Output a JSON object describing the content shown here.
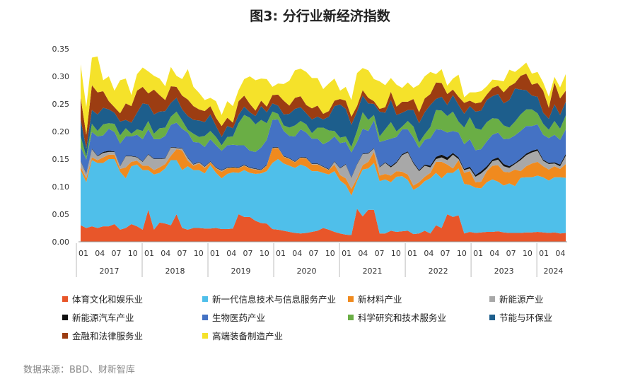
{
  "chart_data": {
    "type": "area",
    "stacked": true,
    "title": "图3: 分行业新经济指数",
    "source": "数据来源：BBD、财新智库",
    "ylim": [
      0,
      0.35
    ],
    "yticks": [
      "0.00",
      "0.05",
      "0.10",
      "0.15",
      "0.20",
      "0.25",
      "0.30",
      "0.35"
    ],
    "ytick_values": [
      0,
      0.05,
      0.1,
      0.15,
      0.2,
      0.25,
      0.3,
      0.35
    ],
    "month_ticks": [
      "01",
      "04",
      "07",
      "10",
      "01",
      "04",
      "07",
      "10",
      "01",
      "04",
      "07",
      "10",
      "01",
      "04",
      "07",
      "10",
      "01",
      "04",
      "07",
      "10",
      "01",
      "04",
      "07",
      "10",
      "01",
      "04",
      "07",
      "10",
      "01",
      "04"
    ],
    "years": [
      "2017",
      "2018",
      "2019",
      "2020",
      "2021",
      "2022",
      "2023",
      "2024"
    ],
    "series": [
      {
        "name": "体育文化和娱乐业",
        "color": "#E8562A",
        "values": [
          0.03,
          0.025,
          0.028,
          0.025,
          0.028,
          0.028,
          0.032,
          0.022,
          0.025,
          0.032,
          0.028,
          0.022,
          0.058,
          0.022,
          0.035,
          0.033,
          0.03,
          0.05,
          0.025,
          0.022,
          0.025,
          0.025,
          0.024,
          0.024,
          0.025,
          0.023,
          0.023,
          0.024,
          0.05,
          0.045,
          0.045,
          0.038,
          0.034,
          0.033,
          0.023,
          0.022,
          0.02,
          0.018,
          0.016,
          0.015,
          0.016,
          0.018,
          0.02,
          0.025,
          0.022,
          0.018,
          0.015,
          0.013,
          0.012,
          0.06,
          0.046,
          0.058,
          0.058,
          0.015,
          0.015,
          0.02,
          0.018,
          0.019,
          0.02,
          0.014,
          0.015,
          0.02,
          0.015,
          0.03,
          0.025,
          0.05,
          0.045,
          0.048,
          0.015,
          0.018,
          0.016,
          0.017,
          0.018,
          0.018,
          0.019,
          0.017,
          0.016,
          0.016,
          0.016,
          0.017,
          0.017,
          0.018,
          0.017,
          0.016,
          0.017,
          0.015,
          0.016
        ]
      },
      {
        "name": "新一代信息技术与信息服务产业",
        "color": "#4FBFEA",
        "values": [
          0.1,
          0.083,
          0.12,
          0.118,
          0.115,
          0.122,
          0.118,
          0.105,
          0.09,
          0.105,
          0.112,
          0.108,
          0.072,
          0.1,
          0.09,
          0.1,
          0.118,
          0.098,
          0.105,
          0.115,
          0.105,
          0.105,
          0.1,
          0.115,
          0.1,
          0.092,
          0.1,
          0.102,
          0.075,
          0.085,
          0.08,
          0.085,
          0.09,
          0.095,
          0.12,
          0.128,
          0.122,
          0.12,
          0.118,
          0.125,
          0.12,
          0.11,
          0.108,
          0.1,
          0.1,
          0.11,
          0.096,
          0.09,
          0.072,
          0.05,
          0.085,
          0.075,
          0.085,
          0.095,
          0.098,
          0.088,
          0.1,
          0.1,
          0.092,
          0.08,
          0.085,
          0.09,
          0.1,
          0.095,
          0.09,
          0.075,
          0.08,
          0.085,
          0.09,
          0.085,
          0.082,
          0.08,
          0.09,
          0.095,
          0.09,
          0.085,
          0.09,
          0.085,
          0.1,
          0.1,
          0.1,
          0.102,
          0.1,
          0.095,
          0.1,
          0.102,
          0.1
        ]
      },
      {
        "name": "新材料产业",
        "color": "#F08A1E",
        "values": [
          0.006,
          0.007,
          0.005,
          0.005,
          0.01,
          0.008,
          0.008,
          0.005,
          0.02,
          0.008,
          0.007,
          0.008,
          0.008,
          0.008,
          0.01,
          0.008,
          0.008,
          0.02,
          0.036,
          0.01,
          0.008,
          0.012,
          0.01,
          0.005,
          0.008,
          0.012,
          0.01,
          0.008,
          0.008,
          0.008,
          0.008,
          0.008,
          0.005,
          0.01,
          0.026,
          0.02,
          0.012,
          0.012,
          0.01,
          0.012,
          0.015,
          0.012,
          0.012,
          0.01,
          0.008,
          0.012,
          0.01,
          0.012,
          0.012,
          0.005,
          0.008,
          0.012,
          0.02,
          0.01,
          0.01,
          0.012,
          0.01,
          0.008,
          0.01,
          0.008,
          0.008,
          0.008,
          0.01,
          0.02,
          0.03,
          0.015,
          0.008,
          0.015,
          0.02,
          0.025,
          0.01,
          0.012,
          0.02,
          0.025,
          0.03,
          0.025,
          0.02,
          0.03,
          0.012,
          0.02,
          0.025,
          0.025,
          0.02,
          0.02,
          0.02,
          0.015,
          0.025
        ]
      },
      {
        "name": "新能源产业",
        "color": "#A8A8A8",
        "values": [
          0.01,
          0.008,
          0.015,
          0.007,
          0.008,
          0.005,
          0.005,
          0.005,
          0.02,
          0.01,
          0.006,
          0.007,
          0.02,
          0.02,
          0.015,
          0.01,
          0.015,
          0.002,
          0.003,
          0.005,
          0.002,
          0.002,
          0.002,
          0.001,
          0.001,
          0.002,
          0.001,
          0.001,
          0.001,
          0.001,
          0.001,
          0.001,
          0.001,
          0.001,
          0.001,
          0.001,
          0.001,
          0.001,
          0.001,
          0.001,
          0.001,
          0.001,
          0.001,
          0.001,
          0.001,
          0.005,
          0.012,
          0.025,
          0.02,
          0.025,
          0.02,
          0.015,
          0.006,
          0.015,
          0.02,
          0.015,
          0.015,
          0.03,
          0.04,
          0.04,
          0.02,
          0.02,
          0.01,
          0.005,
          0.008,
          0.008,
          0.025,
          0.002,
          0.005,
          0.005,
          0.01,
          0.015,
          0.005,
          0.008,
          0.01,
          0.01,
          0.008,
          0.01,
          0.02,
          0.02,
          0.02,
          0.02,
          0.01,
          0.01,
          0.005,
          0.005,
          0.015
        ]
      },
      {
        "name": "新能源汽车产业",
        "color": "#111111",
        "values": [
          0.001,
          0.001,
          0.001,
          0.001,
          0.002,
          0.002,
          0.001,
          0.001,
          0.001,
          0.001,
          0.001,
          0.001,
          0.001,
          0.001,
          0.001,
          0.001,
          0.001,
          0.001,
          0.001,
          0.001,
          0.001,
          0.001,
          0.001,
          0.001,
          0.001,
          0.001,
          0.001,
          0.001,
          0.001,
          0.001,
          0.001,
          0.001,
          0.001,
          0.001,
          0.001,
          0.001,
          0.001,
          0.001,
          0.001,
          0.001,
          0.001,
          0.001,
          0.001,
          0.001,
          0.001,
          0.001,
          0.001,
          0.001,
          0.001,
          0.001,
          0.001,
          0.001,
          0.001,
          0.001,
          0.001,
          0.002,
          0.002,
          0.002,
          0.002,
          0.002,
          0.002,
          0.002,
          0.003,
          0.004,
          0.005,
          0.005,
          0.003,
          0.003,
          0.002,
          0.003,
          0.003,
          0.004,
          0.004,
          0.003,
          0.004,
          0.004,
          0.003,
          0.002,
          0.003,
          0.003,
          0.003,
          0.003,
          0.002,
          0.002,
          0.002,
          0.003,
          0.003
        ]
      },
      {
        "name": "生物医药产业",
        "color": "#4472C4",
        "values": [
          0.025,
          0.025,
          0.03,
          0.035,
          0.03,
          0.04,
          0.035,
          0.04,
          0.035,
          0.035,
          0.04,
          0.04,
          0.045,
          0.035,
          0.035,
          0.04,
          0.04,
          0.045,
          0.035,
          0.045,
          0.04,
          0.035,
          0.035,
          0.04,
          0.04,
          0.035,
          0.04,
          0.04,
          0.04,
          0.035,
          0.03,
          0.03,
          0.04,
          0.045,
          0.05,
          0.05,
          0.045,
          0.04,
          0.045,
          0.05,
          0.045,
          0.045,
          0.045,
          0.04,
          0.05,
          0.045,
          0.045,
          0.04,
          0.045,
          0.04,
          0.045,
          0.04,
          0.05,
          0.045,
          0.04,
          0.05,
          0.045,
          0.045,
          0.04,
          0.045,
          0.04,
          0.045,
          0.05,
          0.05,
          0.045,
          0.045,
          0.04,
          0.045,
          0.045,
          0.05,
          0.045,
          0.04,
          0.045,
          0.045,
          0.045,
          0.045,
          0.05,
          0.05,
          0.05,
          0.05,
          0.045,
          0.045,
          0.045,
          0.045,
          0.05,
          0.045,
          0.045
        ]
      },
      {
        "name": "科学研究和技术服务业",
        "color": "#6AAE45",
        "values": [
          0.02,
          0.005,
          0.015,
          0.01,
          0.02,
          0.01,
          0.015,
          0.015,
          0.015,
          0.005,
          0.01,
          0.015,
          0.015,
          0.01,
          0.02,
          0.015,
          0.015,
          0.02,
          0.015,
          0.005,
          0.015,
          0.01,
          0.02,
          0.015,
          0.015,
          0.01,
          0.015,
          0.015,
          0.04,
          0.055,
          0.06,
          0.05,
          0.05,
          0.03,
          0.015,
          0.01,
          0.01,
          0.015,
          0.02,
          0.015,
          0.015,
          0.01,
          0.02,
          0.03,
          0.02,
          0.01,
          0.01,
          0.01,
          0.01,
          0.02,
          0.03,
          0.02,
          0.01,
          0.01,
          0.02,
          0.03,
          0.01,
          0.005,
          0.015,
          0.02,
          0.01,
          0.01,
          0.02,
          0.035,
          0.035,
          0.03,
          0.035,
          0.02,
          0.03,
          0.04,
          0.04,
          0.035,
          0.035,
          0.03,
          0.025,
          0.025,
          0.02,
          0.025,
          0.03,
          0.03,
          0.03,
          0.02,
          0.02,
          0.015,
          0.025,
          0.02,
          0.025
        ]
      },
      {
        "name": "节能与环保业",
        "color": "#1D5E8C",
        "values": [
          0.03,
          0.015,
          0.025,
          0.03,
          0.03,
          0.025,
          0.02,
          0.025,
          0.015,
          0.02,
          0.03,
          0.05,
          0.03,
          0.035,
          0.03,
          0.03,
          0.025,
          0.025,
          0.02,
          0.025,
          0.025,
          0.03,
          0.025,
          0.03,
          0.02,
          0.015,
          0.02,
          0.015,
          0.015,
          0.015,
          0.01,
          0.015,
          0.025,
          0.02,
          0.015,
          0.015,
          0.02,
          0.025,
          0.03,
          0.025,
          0.02,
          0.025,
          0.02,
          0.015,
          0.025,
          0.045,
          0.06,
          0.05,
          0.04,
          0.035,
          0.03,
          0.03,
          0.02,
          0.045,
          0.03,
          0.04,
          0.03,
          0.025,
          0.02,
          0.03,
          0.035,
          0.04,
          0.04,
          0.02,
          0.025,
          0.02,
          0.03,
          0.03,
          0.025,
          0.02,
          0.03,
          0.035,
          0.04,
          0.04,
          0.045,
          0.04,
          0.05,
          0.06,
          0.045,
          0.035,
          0.025,
          0.03,
          0.02,
          0.02,
          0.03,
          0.025,
          0.025
        ]
      },
      {
        "name": "金融和法律服务业",
        "color": "#9C3D12",
        "values": [
          0.04,
          0.025,
          0.045,
          0.04,
          0.03,
          0.015,
          0.01,
          0.015,
          0.03,
          0.03,
          0.04,
          0.03,
          0.02,
          0.045,
          0.03,
          0.02,
          0.03,
          0.02,
          0.025,
          0.03,
          0.025,
          0.02,
          0.02,
          0.015,
          0.015,
          0.02,
          0.015,
          0.01,
          0.025,
          0.02,
          0.015,
          0.01,
          0.01,
          0.01,
          0.015,
          0.02,
          0.025,
          0.015,
          0.02,
          0.02,
          0.015,
          0.02,
          0.02,
          0.01,
          0.01,
          0.01,
          0.01,
          0.015,
          0.015,
          0.01,
          0.01,
          0.01,
          0.005,
          0.005,
          0.01,
          0.015,
          0.015,
          0.02,
          0.015,
          0.02,
          0.02,
          0.025,
          0.02,
          0.03,
          0.025,
          0.02,
          0.01,
          0.015,
          0.02,
          0.01,
          0.015,
          0.015,
          0.01,
          0.015,
          0.015,
          0.02,
          0.025,
          0.01,
          0.025,
          0.03,
          0.02,
          0.025,
          0.04,
          0.02,
          0.04,
          0.03,
          0.02
        ]
      },
      {
        "name": "高端装备制造产业",
        "color": "#F5E22A",
        "values": [
          0.06,
          0.05,
          0.05,
          0.065,
          0.02,
          0.045,
          0.03,
          0.06,
          0.045,
          0.02,
          0.03,
          0.035,
          0.04,
          0.025,
          0.03,
          0.025,
          0.035,
          0.02,
          0.03,
          0.055,
          0.035,
          0.03,
          0.02,
          0.015,
          0.03,
          0.02,
          0.03,
          0.03,
          0.02,
          0.03,
          0.05,
          0.055,
          0.04,
          0.05,
          0.015,
          0.02,
          0.03,
          0.045,
          0.05,
          0.05,
          0.06,
          0.055,
          0.05,
          0.045,
          0.05,
          0.04,
          0.015,
          0.025,
          0.03,
          0.06,
          0.04,
          0.05,
          0.04,
          0.05,
          0.04,
          0.025,
          0.04,
          0.025,
          0.035,
          0.02,
          0.05,
          0.04,
          0.04,
          0.015,
          0.025,
          0.015,
          0.02,
          0.04,
          0.01,
          0.015,
          0.02,
          0.02,
          0.015,
          0.015,
          0.01,
          0.02,
          0.03,
          0.02,
          0.015,
          0.02,
          0.02,
          0.02,
          0.015,
          0.02,
          0.01,
          0.02,
          0.03
        ]
      }
    ]
  }
}
